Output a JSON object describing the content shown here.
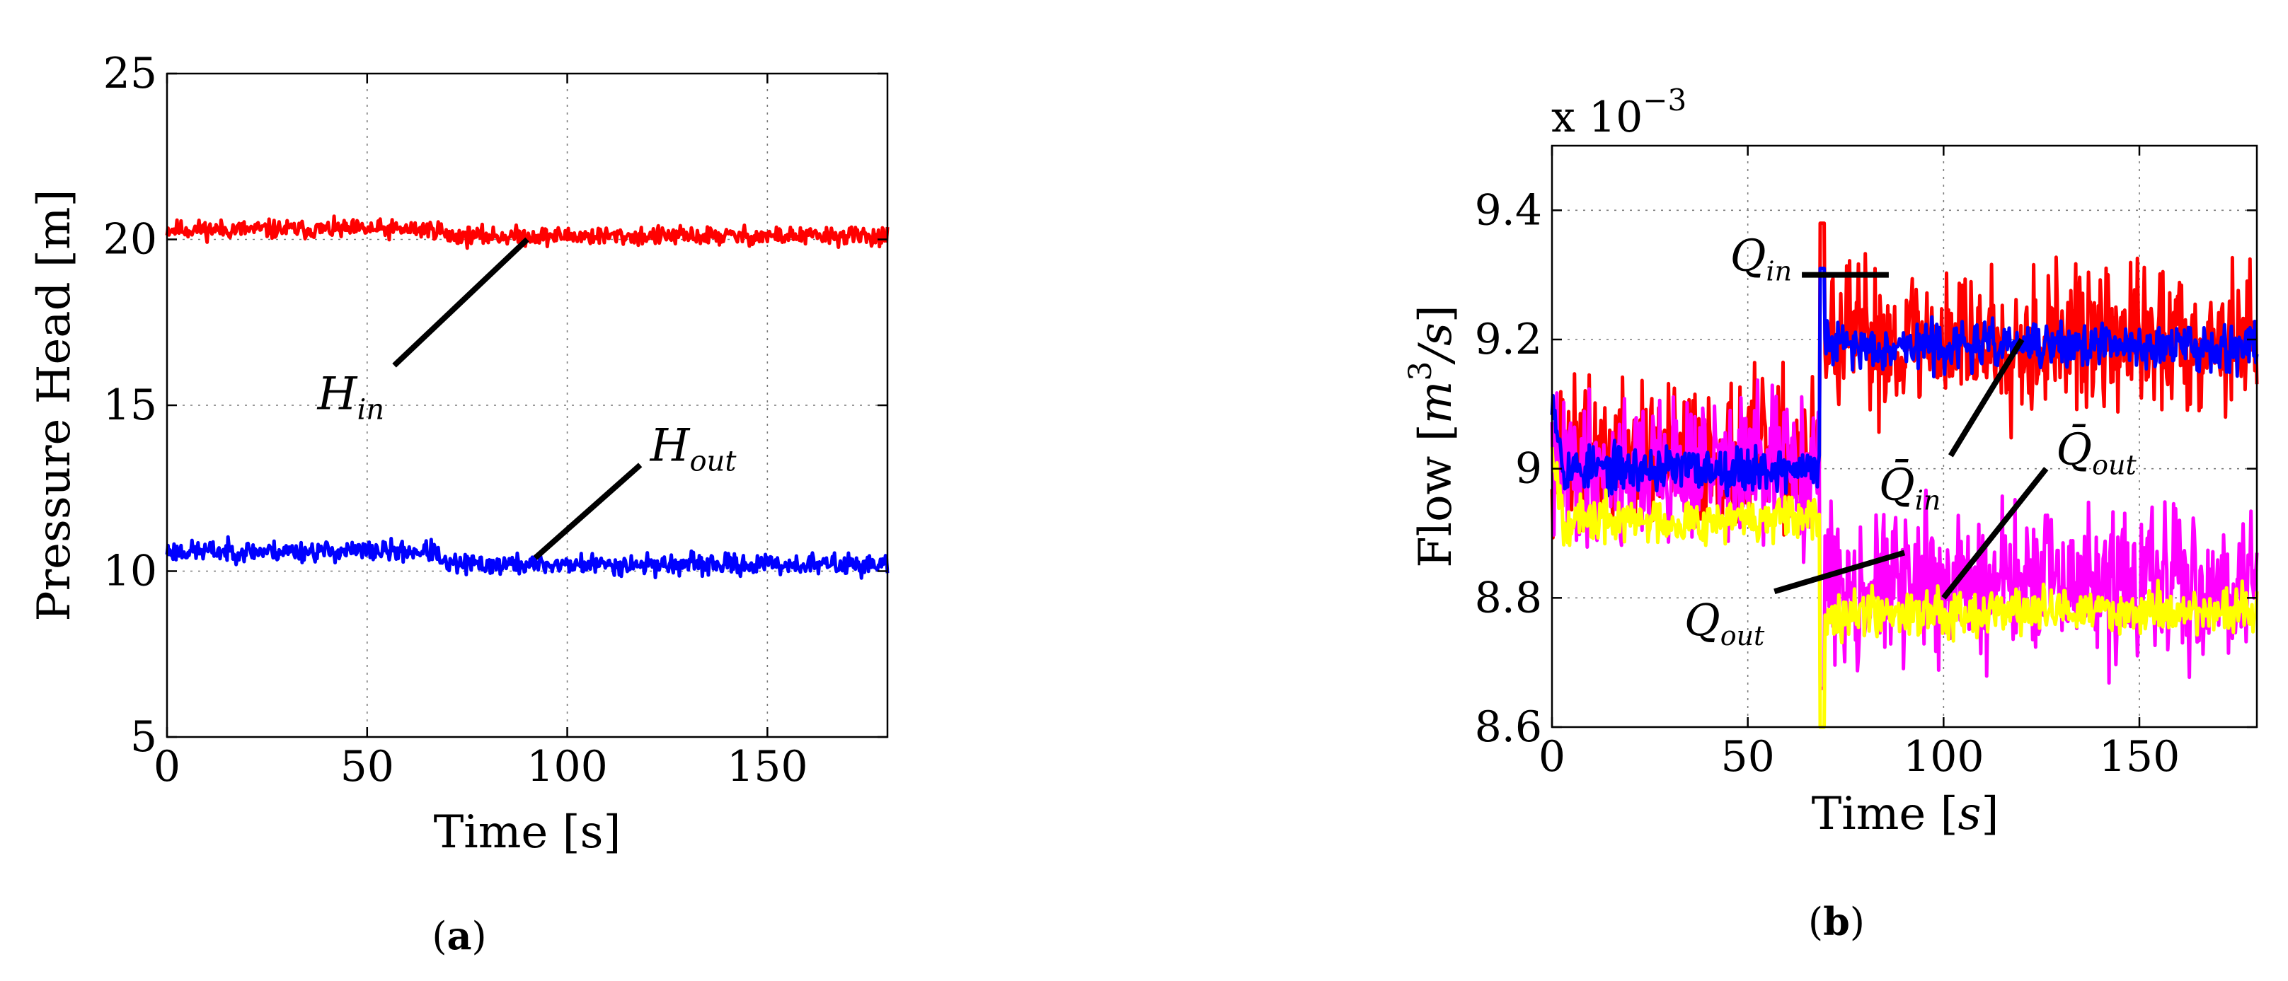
{
  "chart_data": [
    {
      "type": "line",
      "panel": "a",
      "caption_letter": "a",
      "xlabel": "Time [s]",
      "ylabel": "Pressure Head [m]",
      "xlim": [
        0,
        180
      ],
      "ylim": [
        5,
        25
      ],
      "grid": true,
      "xticks": [
        0,
        50,
        100,
        150
      ],
      "yticks": [
        5,
        10,
        15,
        20,
        25
      ],
      "series": [
        {
          "name": "H_in",
          "label_base": "H",
          "label_sub": "in",
          "color": "#ff0000",
          "step_at": 69,
          "before": 20.3,
          "after": 20.1,
          "noise": 0.2,
          "spike": 0,
          "seed": 11
        },
        {
          "name": "H_out",
          "label_base": "H",
          "label_sub": "out",
          "color": "#0000ff",
          "step_at": 68,
          "before": 10.6,
          "after": 10.2,
          "noise": 0.22,
          "spike": 0,
          "seed": 23
        }
      ],
      "annotations": [
        {
          "series": "H_in",
          "point": [
            90,
            20.0
          ],
          "text_at": [
            55,
            16.2
          ]
        },
        {
          "series": "H_out",
          "point": [
            92,
            10.4
          ],
          "text_at": [
            120,
            13.2
          ]
        }
      ]
    },
    {
      "type": "line",
      "panel": "b",
      "caption_letter": "b",
      "xlabel_base": "Time ",
      "xlabel_unit": "s",
      "ylabel_base": "Flow ",
      "ylabel_unit_base": "m",
      "ylabel_unit_sup": "3",
      "ylabel_unit_tail": "/s",
      "exponent_prefix": "x 10",
      "exponent_power": "−3",
      "xlim": [
        0,
        180
      ],
      "ylim": [
        8.6,
        9.5
      ],
      "grid": true,
      "xticks": [
        0,
        50,
        100,
        150
      ],
      "yticks": [
        8.6,
        8.8,
        9,
        9.2,
        9.4
      ],
      "ytick_labels": [
        "8.6",
        "8.8",
        "9",
        "9.2",
        "9.4"
      ],
      "series": [
        {
          "name": "Q_in",
          "label_base": "Q",
          "label_sub": "in",
          "color": "#ff0000",
          "step_at": 69,
          "before": 9.02,
          "after": 9.2,
          "noise": 0.08,
          "spike": 9.38,
          "seed": 37
        },
        {
          "name": "Q_out",
          "label_base": "Q",
          "label_sub": "out",
          "color": "#ff00ff",
          "step_at": 69,
          "before": 9.0,
          "after": 8.82,
          "noise": 0.08,
          "spike": 8.66,
          "seed": 41
        },
        {
          "name": "Q̄_in",
          "label_base": "Q̄",
          "label_sub": "in",
          "color": "#0000ff",
          "step_at": 69,
          "before": 9.0,
          "after": 9.19,
          "noise": 0.025,
          "spike": 9.31,
          "seed": 53
        },
        {
          "name": "Q̄_out",
          "label_base": "Q̄",
          "label_sub": "out",
          "color": "#ffff00",
          "step_at": 69,
          "before": 8.92,
          "after": 8.78,
          "noise": 0.025,
          "spike": 8.6,
          "seed": 67
        }
      ],
      "annotations": [
        {
          "series": "Q_in",
          "point": [
            86,
            9.3
          ],
          "text_at": [
            62,
            9.3
          ]
        },
        {
          "series": "Q̄_in",
          "point": [
            120,
            9.2
          ],
          "text_at": [
            100,
            9.02
          ]
        },
        {
          "series": "Q_out",
          "point": [
            90,
            8.87
          ],
          "text_at": [
            55,
            8.81
          ]
        },
        {
          "series": "Q̄_out",
          "point": [
            100,
            8.8
          ],
          "text_at": [
            128,
            9.0
          ]
        }
      ]
    }
  ]
}
